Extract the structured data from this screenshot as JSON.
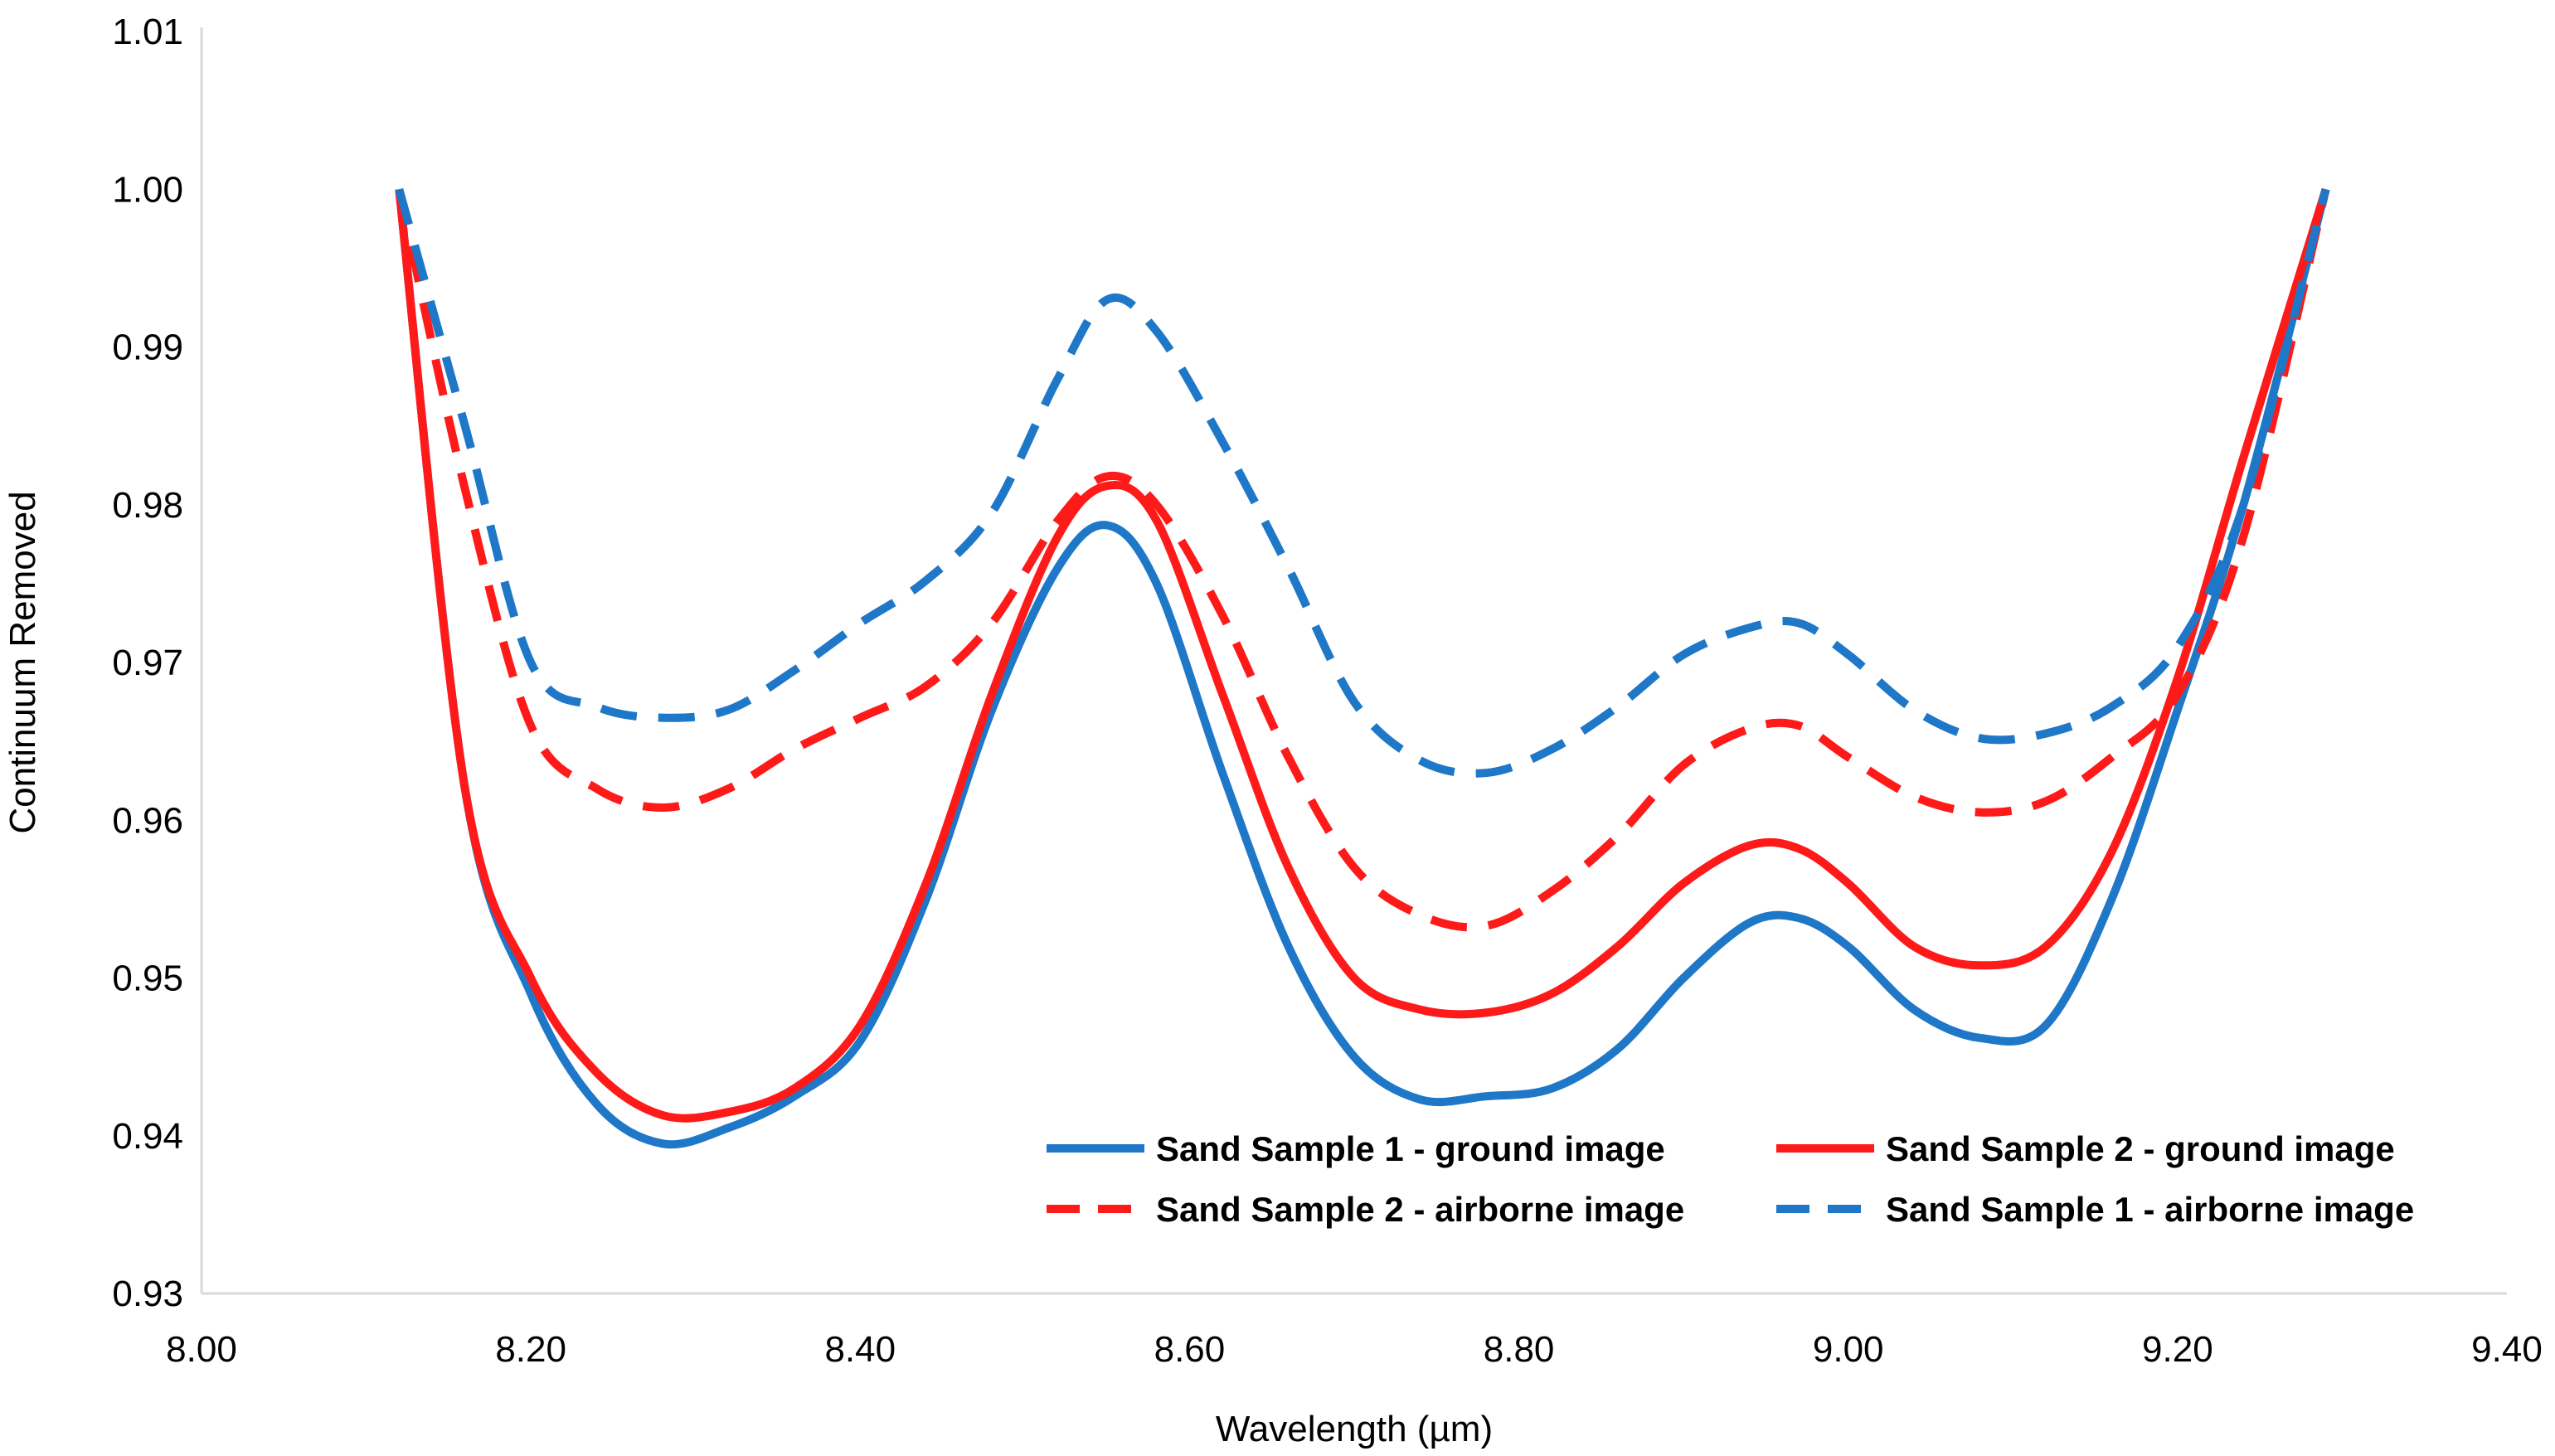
{
  "chart_data": {
    "type": "line",
    "title": "",
    "xlabel": "Wavelength (µm)",
    "ylabel": "Continuum Removed",
    "xlim": [
      8.0,
      9.4
    ],
    "ylim": [
      0.93,
      1.01
    ],
    "x_ticks": [
      8.0,
      8.2,
      8.4,
      8.6,
      8.8,
      9.0,
      9.2,
      9.4
    ],
    "x_tick_labels": [
      "8.00",
      "8.20",
      "8.40",
      "8.60",
      "8.80",
      "9.00",
      "9.20",
      "9.40"
    ],
    "y_ticks": [
      0.93,
      0.94,
      0.95,
      0.96,
      0.97,
      0.98,
      0.99,
      1.0,
      1.01
    ],
    "y_tick_labels": [
      "0.93",
      "0.94",
      "0.95",
      "0.96",
      "0.97",
      "0.98",
      "0.99",
      "1.00",
      "1.01"
    ],
    "grid": false,
    "legend_position": "bottom-right",
    "x": [
      8.12,
      8.16,
      8.2,
      8.24,
      8.28,
      8.32,
      8.36,
      8.4,
      8.44,
      8.48,
      8.52,
      8.55,
      8.58,
      8.62,
      8.66,
      8.7,
      8.74,
      8.78,
      8.82,
      8.86,
      8.9,
      8.94,
      8.97,
      9.0,
      9.04,
      9.08,
      9.12,
      9.16,
      9.2,
      9.24,
      9.29
    ],
    "series": [
      {
        "name": "Sand Sample 1 - ground image",
        "color": "#1F77C8",
        "style": "solid",
        "values": [
          1.0,
          0.962,
          0.949,
          0.942,
          0.9395,
          0.9405,
          0.9425,
          0.946,
          0.955,
          0.967,
          0.976,
          0.9787,
          0.975,
          0.963,
          0.952,
          0.945,
          0.9423,
          0.9425,
          0.943,
          0.9455,
          0.95,
          0.9535,
          0.9538,
          0.952,
          0.948,
          0.9462,
          0.947,
          0.955,
          0.967,
          0.98,
          1.0
        ]
      },
      {
        "name": "Sand Sample 2 - ground image",
        "color": "#FF1A1A",
        "style": "solid",
        "values": [
          1.0,
          0.962,
          0.95,
          0.944,
          0.9413,
          0.9415,
          0.943,
          0.947,
          0.956,
          0.968,
          0.978,
          0.9812,
          0.979,
          0.968,
          0.957,
          0.95,
          0.948,
          0.9478,
          0.949,
          0.952,
          0.956,
          0.9584,
          0.9582,
          0.956,
          0.952,
          0.9508,
          0.952,
          0.958,
          0.969,
          0.983,
          1.0
        ]
      },
      {
        "name": "Sand Sample 2 - airborne image",
        "color": "#FF1A1A",
        "style": "dashed",
        "values": [
          1.0,
          0.981,
          0.966,
          0.962,
          0.9608,
          0.962,
          0.9645,
          0.9665,
          0.9685,
          0.9725,
          0.979,
          0.9818,
          0.98,
          0.973,
          0.964,
          0.957,
          0.954,
          0.9533,
          0.9555,
          0.959,
          0.9635,
          0.9658,
          0.966,
          0.964,
          0.9615,
          0.9605,
          0.9612,
          0.964,
          0.968,
          0.978,
          1.0
        ]
      },
      {
        "name": "Sand Sample 1 - airborne image",
        "color": "#1F77C8",
        "style": "dashed",
        "values": [
          1.0,
          0.985,
          0.97,
          0.9672,
          0.9665,
          0.967,
          0.9695,
          0.9725,
          0.9752,
          0.9795,
          0.988,
          0.993,
          0.991,
          0.984,
          0.976,
          0.9675,
          0.9638,
          0.963,
          0.9645,
          0.9672,
          0.9705,
          0.9722,
          0.9725,
          0.9705,
          0.967,
          0.9652,
          0.9655,
          0.9672,
          0.971,
          0.98,
          1.0
        ]
      }
    ]
  }
}
